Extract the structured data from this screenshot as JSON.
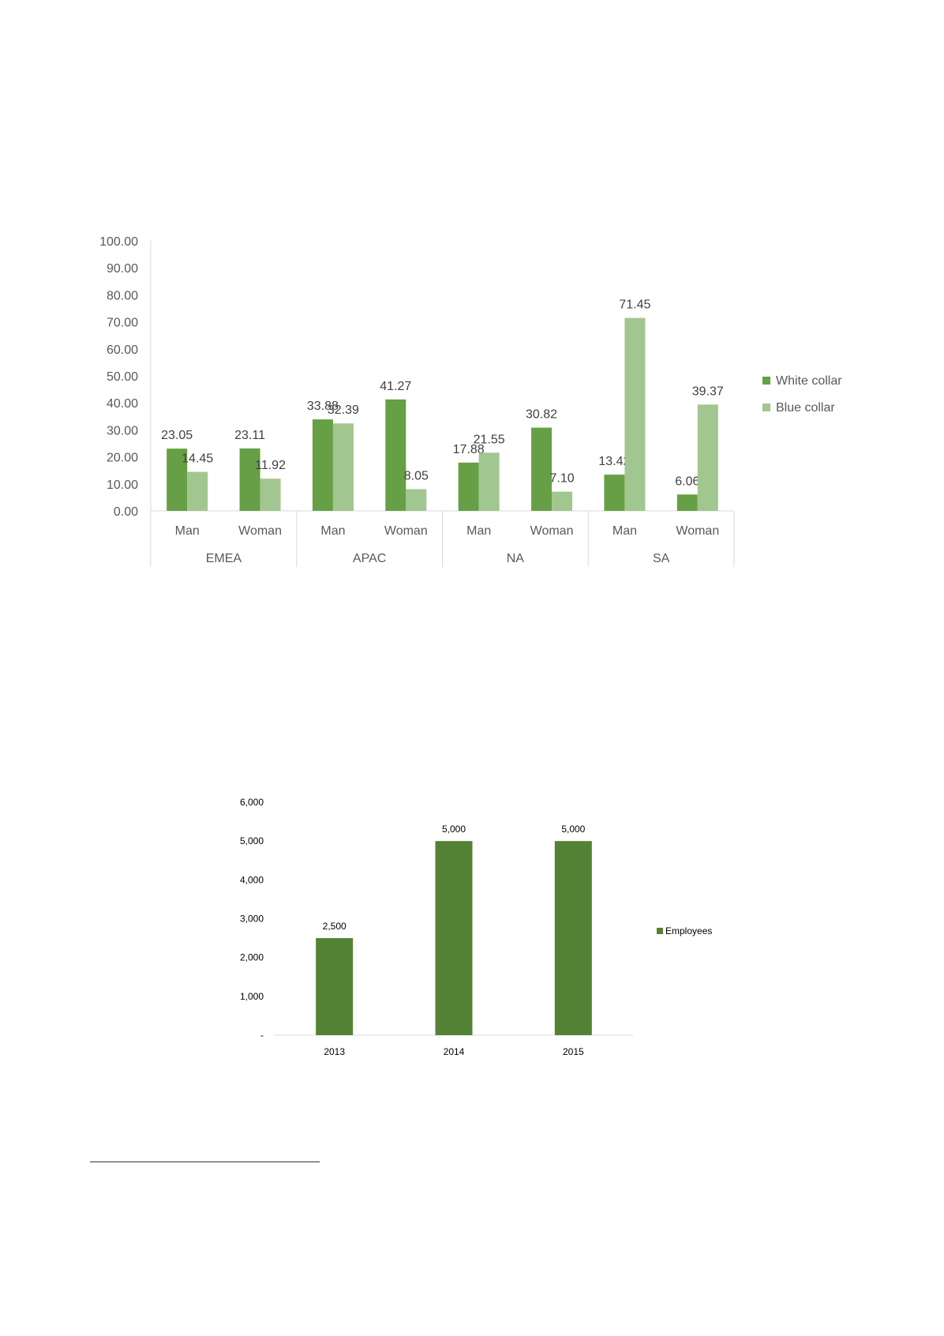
{
  "colors": {
    "white_collar": "#669f45",
    "blue_collar": "#a2c690",
    "employees": "#548235",
    "axis": "#d9d9d9",
    "text": "#595959",
    "text_dark": "#404040"
  },
  "chart_data": [
    {
      "type": "bar",
      "title": "",
      "ylim": [
        0,
        100
      ],
      "yticks": [
        "100.00",
        "90.00",
        "80.00",
        "70.00",
        "60.00",
        "50.00",
        "40.00",
        "30.00",
        "20.00",
        "10.00",
        "0.00"
      ],
      "groups": [
        "EMEA",
        "APAC",
        "NA",
        "SA"
      ],
      "categories": [
        "Man",
        "Woman",
        "Man",
        "Woman",
        "Man",
        "Woman",
        "Man",
        "Woman"
      ],
      "series": [
        {
          "name": "White collar",
          "values": [
            23.05,
            23.11,
            33.88,
            41.27,
            17.88,
            30.82,
            13.42,
            6.06
          ],
          "labels": [
            "23.05",
            "23.11",
            "33.88",
            "41.27",
            "17.88",
            "30.82",
            "13.42",
            "6.06"
          ]
        },
        {
          "name": "Blue collar",
          "values": [
            14.45,
            11.92,
            32.39,
            8.05,
            21.55,
            7.1,
            71.45,
            39.37
          ],
          "labels": [
            "14.45",
            "11.92",
            "32.39",
            "8.05",
            "21.55",
            "7.10",
            "71.45",
            "39.37"
          ]
        }
      ],
      "legend_position": "right",
      "grid": false
    },
    {
      "type": "bar",
      "title": "",
      "ylim": [
        0,
        6000
      ],
      "yticks": [
        "6,000",
        "5,000",
        "4,000",
        "3,000",
        "2,000",
        "1,000",
        "-"
      ],
      "categories": [
        "2013",
        "2014",
        "2015"
      ],
      "series": [
        {
          "name": "Employees",
          "values": [
            2500,
            5000,
            5000
          ],
          "labels": [
            "2,500",
            "5,000",
            "5,000"
          ]
        }
      ],
      "legend_position": "right",
      "grid": false
    }
  ]
}
